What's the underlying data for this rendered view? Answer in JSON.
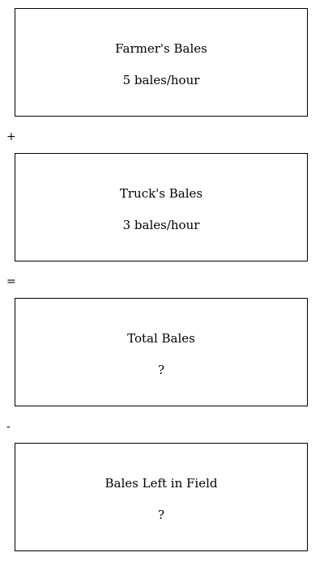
{
  "boxes": [
    {
      "title": "Farmer's Bales",
      "value": "5 bales/hour"
    },
    {
      "title": "Truck's Bales",
      "value": "3 bales/hour"
    },
    {
      "title": "Total Bales",
      "value": "?"
    },
    {
      "title": "Bales Left in Field",
      "value": "?"
    }
  ],
  "operators": [
    "+",
    "=",
    "-"
  ]
}
